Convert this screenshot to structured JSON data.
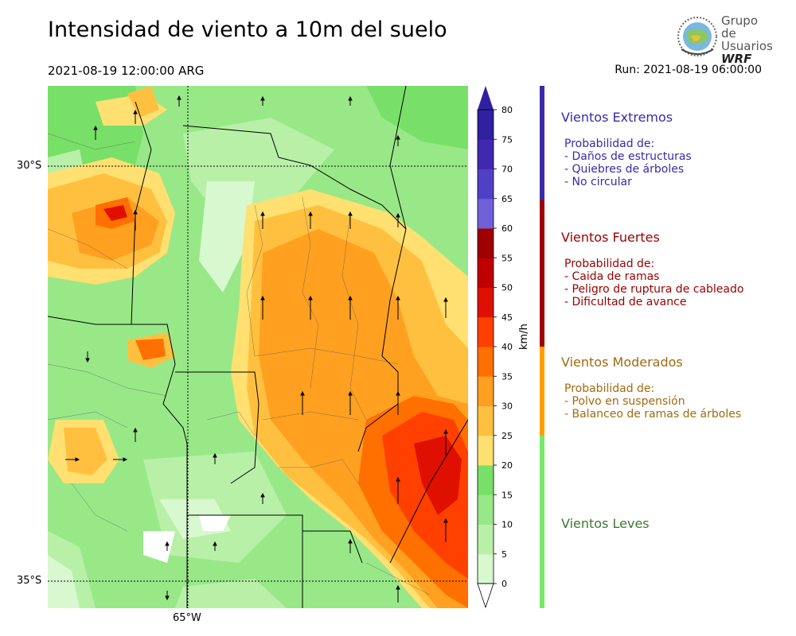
{
  "header": {
    "title": "Intensidad de viento a 10m del suelo",
    "valid_time": "2021-08-19 12:00:00 ARG",
    "run_time": "Run: 2021-08-19 06:00:00"
  },
  "logo": {
    "line1": "Grupo de",
    "line2": "Usuarios",
    "line3": "WRF"
  },
  "map": {
    "lat_labels": [
      "30°S",
      "35°S"
    ],
    "lon_labels": [
      "65°W"
    ]
  },
  "colorbar": {
    "unit": "km/h",
    "ticks": [
      "0",
      "5",
      "10",
      "15",
      "20",
      "25",
      "30",
      "35",
      "40",
      "45",
      "50",
      "55",
      "60",
      "65",
      "70",
      "75",
      "80"
    ],
    "colors": [
      "#ffffff",
      "#d8f8d0",
      "#b8f0a8",
      "#98e888",
      "#78e068",
      "#ffe070",
      "#ffc040",
      "#ffa020",
      "#ff7000",
      "#ff4000",
      "#e01000",
      "#c00000",
      "#a00000",
      "#7060d8",
      "#5040c8",
      "#4028b0",
      "#3020a0"
    ]
  },
  "categories": [
    {
      "title": "Vientos Extremos",
      "color": "#3a2aa8",
      "bar_color": "#3a2aa8",
      "desc_title": "Probabilidad de:",
      "items": [
        "- Daños de estructuras",
        "- Quiebres de árboles",
        "- No circular"
      ]
    },
    {
      "title": "Vientos Fuertes",
      "color": "#9a0000",
      "bar_color": "#a00000",
      "desc_title": "Probabilidad de:",
      "items": [
        "- Caida de ramas",
        "- Peligro de ruptura de cableado",
        "- Dificultad de avance"
      ]
    },
    {
      "title": "Vientos Moderados",
      "color": "#a06a10",
      "bar_color": "#ffa000",
      "desc_title": "Probabilidad de:",
      "items": [
        "- Polvo en suspensión",
        "- Balanceo de ramas de árboles"
      ]
    },
    {
      "title": "Vientos Leves",
      "color": "#3a7a30",
      "bar_color": "#78e868",
      "desc_title": "",
      "items": []
    }
  ]
}
